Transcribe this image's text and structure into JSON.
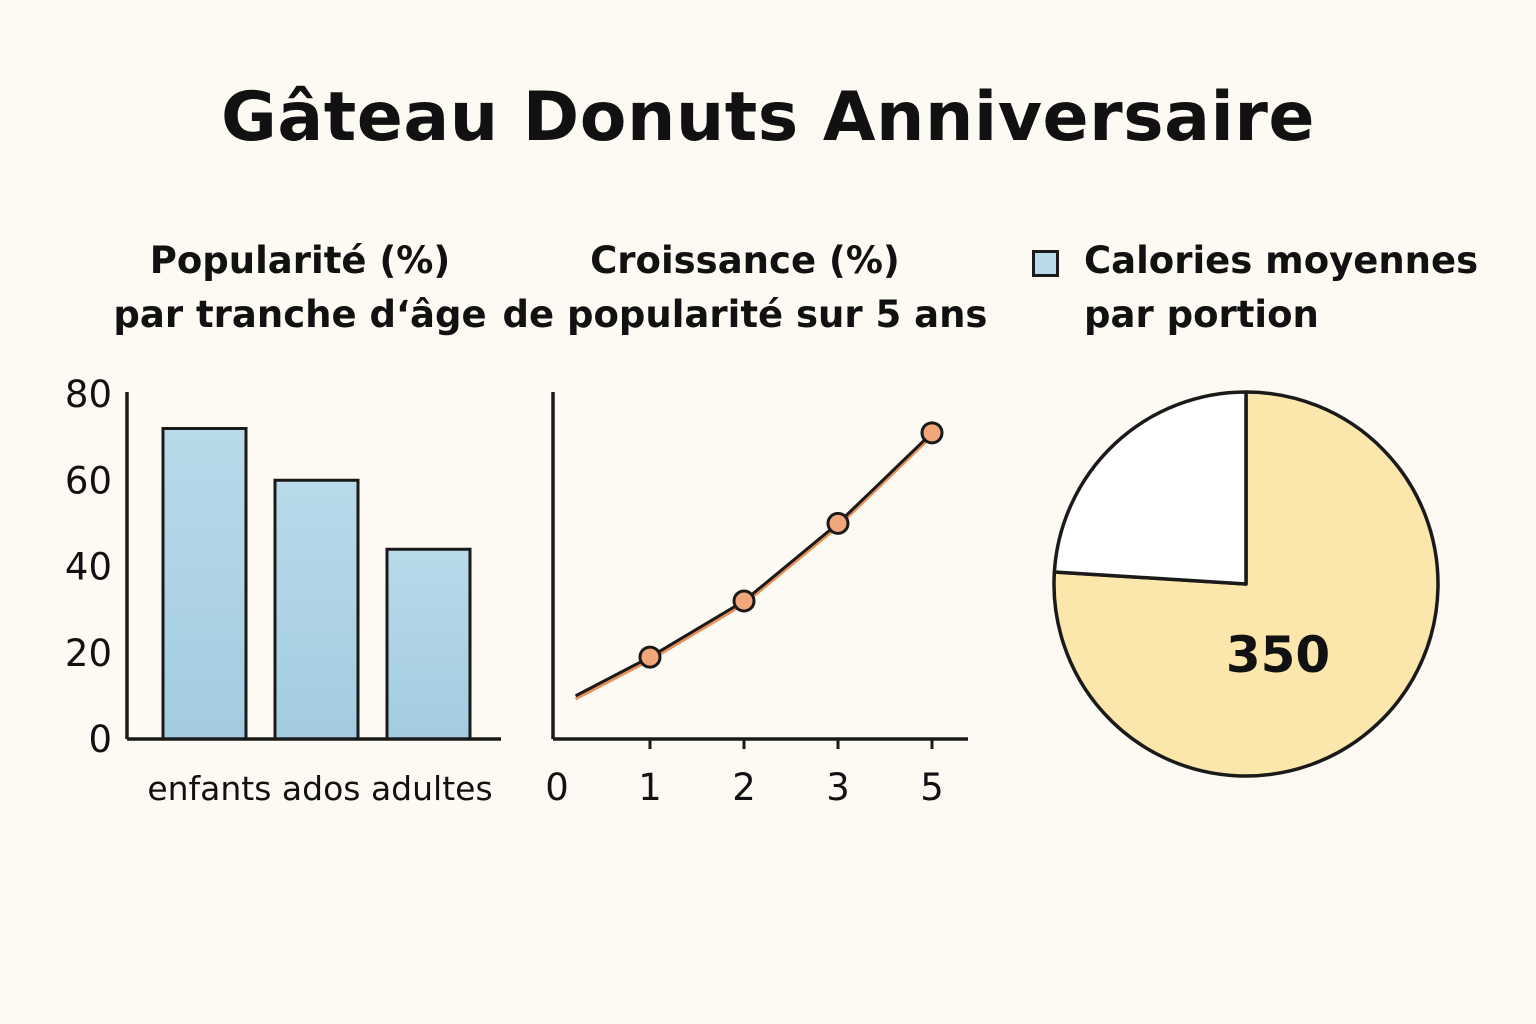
{
  "title": "Gâteau Donuts Anniversaire",
  "colors": {
    "background": "#fdf9f3",
    "bar_fill": "#b8dae9",
    "line_stroke": "#e8905a",
    "point_fill": "#f2a77a",
    "pie_fill": "#fbe6ac",
    "pie_rest": "#ffffff",
    "legend_swatch": "#b8dae9",
    "ink": "#1a1a1a"
  },
  "chart_data": [
    {
      "type": "bar",
      "title_lines": [
        "Popularité (%)",
        "par tranche d‘âge"
      ],
      "categories": [
        "enfants",
        "ados",
        "adultes"
      ],
      "values": [
        72,
        60,
        44
      ],
      "ylim": [
        0,
        80
      ],
      "yticks": [
        0,
        20,
        40,
        60,
        80
      ],
      "xlabel": "",
      "ylabel": ""
    },
    {
      "type": "line",
      "title_lines": [
        "Croissance (%)",
        "de popularité sur 5 ans"
      ],
      "xticks": [
        "0",
        "1",
        "2",
        "3",
        "5"
      ],
      "x": [
        0.2,
        1,
        2,
        3,
        4
      ],
      "y": [
        10,
        19,
        32,
        50,
        71
      ],
      "markers_at": [
        1,
        2,
        3,
        4
      ],
      "ylim": [
        0,
        80
      ],
      "xlabel": "",
      "ylabel": ""
    },
    {
      "type": "pie",
      "title_lines": [
        "Calories moyennes",
        "par portion"
      ],
      "legend": "top-left",
      "slices": [
        {
          "label": "350",
          "value": 76
        },
        {
          "label": "",
          "value": 24
        }
      ]
    }
  ]
}
